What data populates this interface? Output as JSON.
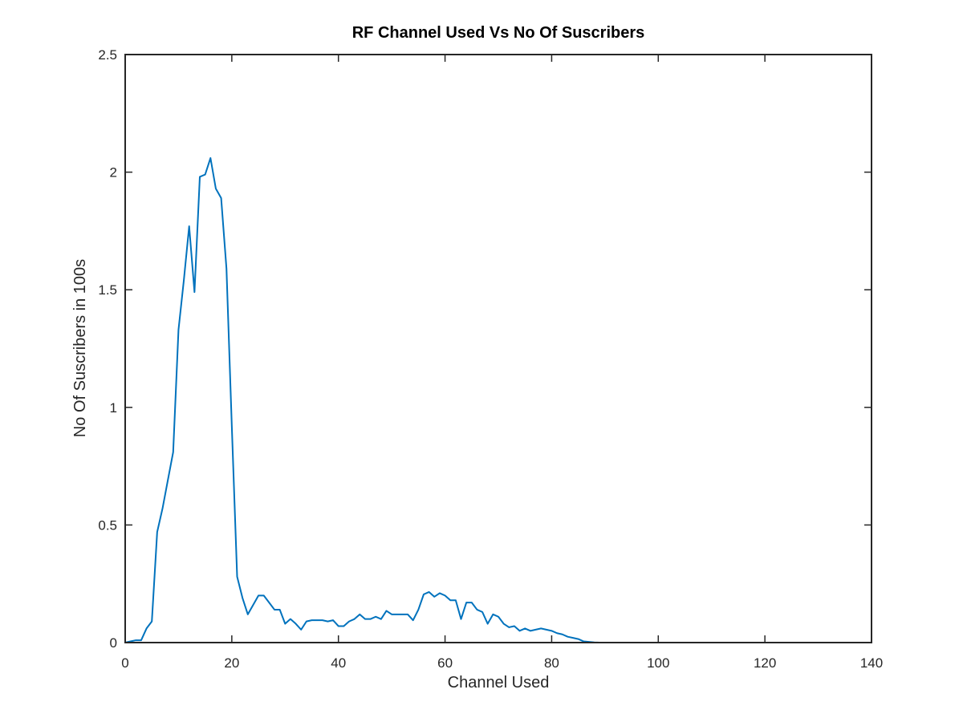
{
  "chart_data": {
    "type": "line",
    "title": "RF Channel Used Vs No Of Suscribers",
    "xlabel": "Channel Used",
    "ylabel": "No Of Suscribers in 100s",
    "xlim": [
      0,
      140
    ],
    "ylim": [
      0,
      2.5
    ],
    "xticks": [
      0,
      20,
      40,
      60,
      80,
      100,
      120,
      140
    ],
    "yticks": [
      0,
      0.5,
      1,
      1.5,
      2,
      2.5
    ],
    "xtick_labels": [
      "0",
      "20",
      "40",
      "60",
      "80",
      "100",
      "120",
      "140"
    ],
    "ytick_labels": [
      "0",
      "0.5",
      "1",
      "1.5",
      "2",
      "2.5"
    ],
    "grid": false,
    "line_color": "#0072BD",
    "series": [
      {
        "x": [
          0,
          1,
          2,
          3,
          4,
          5,
          6,
          7,
          8,
          9,
          10,
          11,
          12,
          13,
          14,
          15,
          16,
          17,
          18,
          19,
          20,
          21,
          22,
          23,
          24,
          25,
          26,
          27,
          28,
          29,
          30,
          31,
          32,
          33,
          34,
          35,
          36,
          37,
          38,
          39,
          40,
          41,
          42,
          43,
          44,
          45,
          46,
          47,
          48,
          49,
          50,
          51,
          52,
          53,
          54,
          55,
          56,
          57,
          58,
          59,
          60,
          61,
          62,
          63,
          64,
          65,
          66,
          67,
          68,
          69,
          70,
          71,
          72,
          73,
          74,
          75,
          76,
          77,
          78,
          79,
          80,
          81,
          82,
          83,
          84,
          85,
          86,
          87,
          88,
          89,
          128
        ],
        "y": [
          0,
          0.005,
          0.01,
          0.01,
          0.06,
          0.09,
          0.47,
          0.57,
          0.69,
          0.81,
          1.33,
          1.54,
          1.77,
          1.49,
          1.98,
          1.99,
          2.06,
          1.93,
          1.89,
          1.59,
          0.92,
          0.28,
          0.19,
          0.12,
          0.16,
          0.2,
          0.2,
          0.17,
          0.14,
          0.14,
          0.08,
          0.1,
          0.08,
          0.055,
          0.09,
          0.095,
          0.095,
          0.095,
          0.09,
          0.095,
          0.07,
          0.07,
          0.09,
          0.1,
          0.12,
          0.1,
          0.1,
          0.11,
          0.1,
          0.135,
          0.12,
          0.12,
          0.12,
          0.12,
          0.095,
          0.14,
          0.205,
          0.215,
          0.195,
          0.21,
          0.2,
          0.18,
          0.18,
          0.1,
          0.17,
          0.17,
          0.14,
          0.13,
          0.08,
          0.12,
          0.11,
          0.08,
          0.065,
          0.07,
          0.05,
          0.06,
          0.05,
          0.055,
          0.06,
          0.055,
          0.05,
          0.04,
          0.035,
          0.025,
          0.02,
          0.015,
          0.005,
          0.003,
          0.001,
          0,
          0
        ]
      }
    ]
  }
}
